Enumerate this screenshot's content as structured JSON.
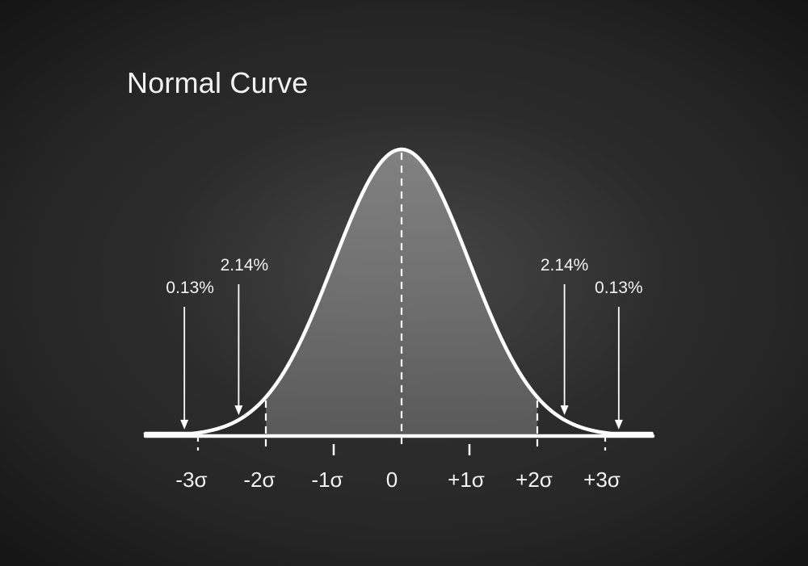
{
  "chart_data": {
    "type": "area",
    "title": "Normal Curve",
    "xlim": [
      -3.5,
      3.5
    ],
    "ylim": [
      0,
      0.4
    ],
    "tick_values": [
      -3,
      -2,
      -1,
      0,
      1,
      2,
      3
    ],
    "tick_labels": [
      "-3σ",
      "-2σ",
      "-1σ",
      "0",
      "+1σ",
      "+2σ",
      "+3σ"
    ],
    "shaded_range": [
      -2,
      2
    ],
    "guide_lines_at": [
      -3,
      -2,
      0,
      2,
      3
    ],
    "annotations": [
      {
        "label": "0.13%",
        "x": -3.2
      },
      {
        "label": "2.14%",
        "x": -2.4
      },
      {
        "label": "2.14%",
        "x": 2.4
      },
      {
        "label": "0.13%",
        "x": 3.2
      }
    ],
    "colors": {
      "curve": "#ffffff",
      "fill": "#7a7a7a",
      "text": "#f2f2f2"
    }
  }
}
